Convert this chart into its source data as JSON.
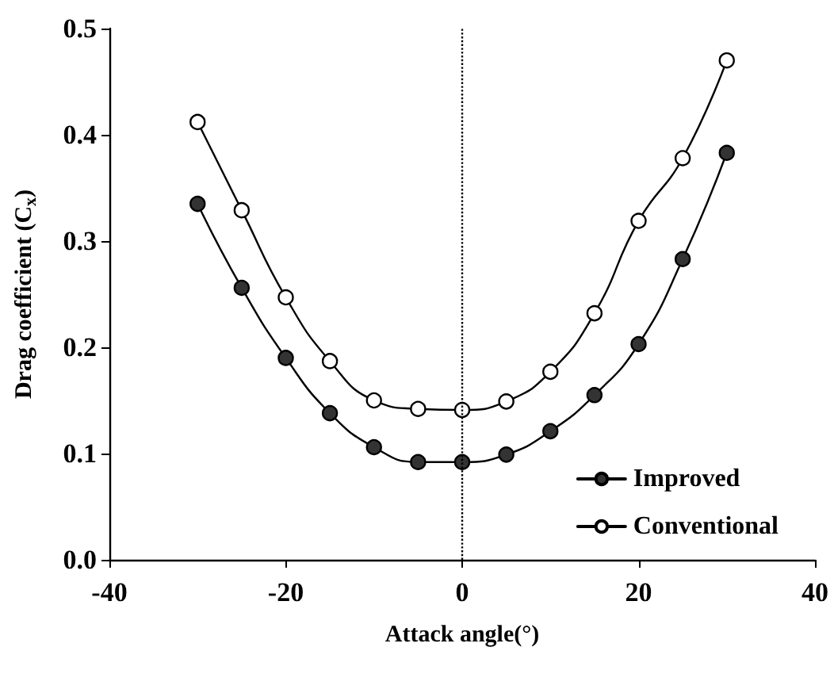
{
  "chart_data": {
    "type": "line",
    "xlabel": "Attack angle(°)",
    "ylabel": "Drag coefficient (C$_{x}$)",
    "x": [
      -30,
      -25,
      -20,
      -15,
      -10,
      -5,
      0,
      5,
      10,
      15,
      20,
      25,
      30
    ],
    "series": [
      {
        "name": "Improved",
        "color": "#333333",
        "values": [
          0.335,
          0.256,
          0.19,
          0.138,
          0.106,
          0.092,
          0.092,
          0.099,
          0.121,
          0.155,
          0.203,
          0.283,
          0.383
        ]
      },
      {
        "name": "Conventional",
        "color": "#ffffff",
        "values": [
          0.412,
          0.329,
          0.247,
          0.187,
          0.15,
          0.142,
          0.141,
          0.149,
          0.177,
          0.232,
          0.319,
          0.378,
          0.47
        ]
      }
    ],
    "xlim": [
      -40,
      40
    ],
    "xticks": [
      -40,
      -20,
      0,
      20,
      40
    ],
    "ylim": [
      0,
      0.5
    ],
    "yticks": [
      {
        "value": 0,
        "label": "0.0"
      },
      0.1,
      0.2,
      0.3,
      0.4,
      0.5
    ],
    "ref_lines": [
      {
        "axis": "x",
        "value": 0,
        "line_style": "dotted",
        "color": "#000000"
      }
    ],
    "marker": "circle",
    "line_style": "solid",
    "grid": false,
    "legend": "bottom right"
  }
}
